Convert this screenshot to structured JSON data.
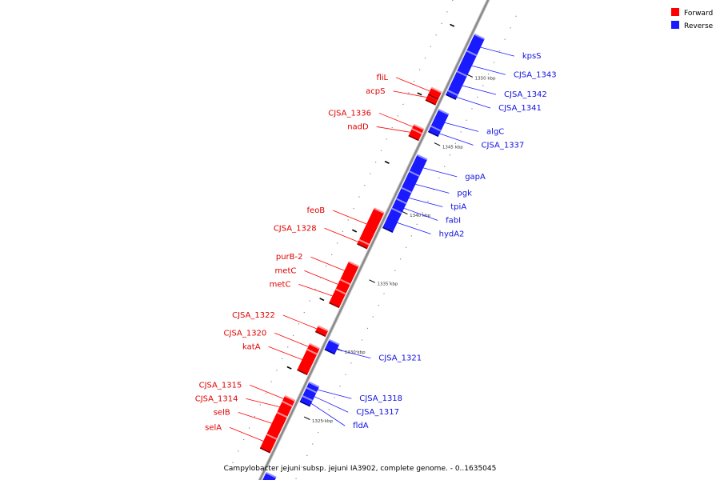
{
  "caption": "Campylobacter jejuni subsp. jejuni IA3902, complete genome. - 0..1635045",
  "legend": {
    "forward_label": "Forward",
    "reverse_label": "Reverse",
    "forward_color": "#ff0000",
    "reverse_color": "#1a1aff"
  },
  "backbone_color": "#888888",
  "ticks": [
    {
      "kbp": 1325,
      "label": "1325 kbp"
    },
    {
      "kbp": 1330,
      "label": "1330 kbp"
    },
    {
      "kbp": 1335,
      "label": "1335 kbp"
    },
    {
      "kbp": 1340,
      "label": "1340 kbp"
    },
    {
      "kbp": 1345,
      "label": "1345 kbp"
    },
    {
      "kbp": 1350,
      "label": "1350 kbp"
    }
  ],
  "genes_forward": [
    {
      "name": "acpS",
      "start": 1347.3,
      "end": 1347.7
    },
    {
      "name": "fliL",
      "start": 1347.7,
      "end": 1348.2
    },
    {
      "name": "CJSA_1336",
      "start": 1345.2,
      "end": 1345.5
    },
    {
      "name": "nadD",
      "start": 1344.7,
      "end": 1345.2
    },
    {
      "name": "feoB",
      "start": 1337.1,
      "end": 1339.4
    },
    {
      "name": "CJSA_1328",
      "start": 1336.8,
      "end": 1337.1
    },
    {
      "name": "purB-2",
      "start": 1334.2,
      "end": 1335.5
    },
    {
      "name": "metC",
      "start": 1333.5,
      "end": 1334.2
    },
    {
      "name": "metC",
      "start": 1332.5,
      "end": 1333.5
    },
    {
      "name": "CJSA_1322",
      "start": 1330.4,
      "end": 1330.8
    },
    {
      "name": "CJSA_1320",
      "start": 1329.1,
      "end": 1329.5
    },
    {
      "name": "katA",
      "start": 1327.6,
      "end": 1329.1
    },
    {
      "name": "CJSA_1315",
      "start": 1325.3,
      "end": 1325.7
    },
    {
      "name": "CJSA_1314",
      "start": 1324.5,
      "end": 1325.3
    },
    {
      "name": "selB",
      "start": 1322.9,
      "end": 1324.5
    },
    {
      "name": "selA",
      "start": 1321.9,
      "end": 1322.9
    }
  ],
  "genes_reverse": [
    {
      "name": "kpsS",
      "start": 1351.4,
      "end": 1352.6
    },
    {
      "name": "CJSA_1343",
      "start": 1349.9,
      "end": 1351.4
    },
    {
      "name": "CJSA_1342",
      "start": 1348.5,
      "end": 1349.9
    },
    {
      "name": "CJSA_1341",
      "start": 1348.2,
      "end": 1348.5
    },
    {
      "name": "algC",
      "start": 1345.9,
      "end": 1347.1
    },
    {
      "name": "CJSA_1337",
      "start": 1345.5,
      "end": 1345.9
    },
    {
      "name": "gapA",
      "start": 1342.6,
      "end": 1343.8
    },
    {
      "name": "pgk",
      "start": 1341.4,
      "end": 1342.6
    },
    {
      "name": "tpiA",
      "start": 1340.6,
      "end": 1341.4
    },
    {
      "name": "fabI",
      "start": 1339.9,
      "end": 1340.6
    },
    {
      "name": "hydA2",
      "start": 1338.5,
      "end": 1339.9
    },
    {
      "name": "CJSA_1321",
      "start": 1329.6,
      "end": 1330.3
    },
    {
      "name": "CJSA_1318",
      "start": 1326.8,
      "end": 1327.2
    },
    {
      "name": "CJSA_1317",
      "start": 1326.2,
      "end": 1326.8
    },
    {
      "name": "fldA",
      "start": 1325.8,
      "end": 1326.2
    },
    {
      "name": "",
      "start": 1319.5,
      "end": 1320.6
    }
  ]
}
